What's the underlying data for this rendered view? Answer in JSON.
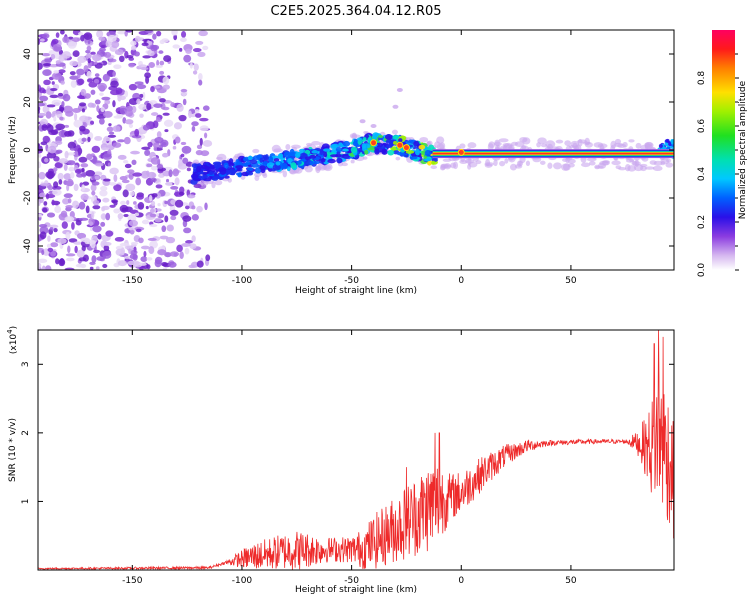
{
  "title": "C2E5.2025.364.04.12.R05",
  "chart_data": [
    {
      "type": "heatmap",
      "name": "spectrogram",
      "xlabel": "Height of straight line (km)",
      "ylabel": "Frequency (Hz)",
      "xlim": [
        -193,
        97
      ],
      "ylim": [
        -50,
        50
      ],
      "xticks": [
        -150,
        -100,
        -50,
        0,
        50
      ],
      "yticks": [
        -40,
        -20,
        0,
        20,
        40
      ],
      "colorbar": {
        "label": "Normalized spectral amplitude",
        "range": [
          0,
          1
        ],
        "ticks": [
          "0.0",
          "0.2",
          "0.4",
          "0.6",
          "0.8"
        ]
      },
      "features": {
        "noise_region_x": [
          -193,
          -122
        ],
        "ridge": [
          [
            -122,
            -10
          ],
          [
            -100,
            -7
          ],
          [
            -75,
            -4
          ],
          [
            -50,
            0
          ],
          [
            -40,
            3
          ],
          [
            -28,
            2
          ],
          [
            -22,
            0
          ],
          [
            -15,
            -2
          ],
          [
            0,
            -1
          ],
          [
            50,
            -2
          ],
          [
            97,
            -2
          ]
        ],
        "strong_line_x": [
          -13,
          97
        ],
        "strong_line_freq": -1.5
      }
    },
    {
      "type": "line",
      "name": "snr",
      "xlabel": "Height of straight line (km)",
      "ylabel": "SNR (10 * v/v)",
      "scale_label": "(x10",
      "scale_exponent": "4",
      "scale_close": ")",
      "xlim": [
        -193,
        97
      ],
      "ylim": [
        0,
        3.5
      ],
      "xticks": [
        -150,
        -100,
        -50,
        0,
        50
      ],
      "yticks": [
        1,
        2,
        3
      ],
      "series": [
        {
          "name": "SNR",
          "color": "#ee2a2a",
          "envelope": [
            [
              -193,
              0.02
            ],
            [
              -115,
              0.03
            ],
            [
              -108,
              0.1
            ],
            [
              -100,
              0.15
            ],
            [
              -80,
              0.25
            ],
            [
              -60,
              0.28
            ],
            [
              -45,
              0.28
            ],
            [
              -38,
              0.4
            ],
            [
              -30,
              0.55
            ],
            [
              -20,
              0.75
            ],
            [
              -10,
              0.95
            ],
            [
              0,
              1.1
            ],
            [
              10,
              1.4
            ],
            [
              20,
              1.65
            ],
            [
              30,
              1.8
            ],
            [
              40,
              1.85
            ],
            [
              60,
              1.87
            ],
            [
              75,
              1.87
            ],
            [
              80,
              1.85
            ],
            [
              87,
              1.7
            ],
            [
              90,
              1.9
            ],
            [
              95,
              1.5
            ],
            [
              97,
              1.2
            ]
          ],
          "spread": [
            [
              -193,
              0.01
            ],
            [
              -108,
              0.02
            ],
            [
              -95,
              0.2
            ],
            [
              -75,
              0.3
            ],
            [
              -60,
              0.18
            ],
            [
              -50,
              0.2
            ],
            [
              -40,
              0.4
            ],
            [
              -25,
              0.55
            ],
            [
              -12,
              0.7
            ],
            [
              -5,
              0.35
            ],
            [
              10,
              0.25
            ],
            [
              25,
              0.12
            ],
            [
              40,
              0.04
            ],
            [
              75,
              0.03
            ],
            [
              80,
              0.15
            ],
            [
              85,
              0.5
            ],
            [
              90,
              1.1
            ],
            [
              97,
              0.9
            ]
          ],
          "spikes": [
            [
              -12,
              2.0
            ],
            [
              -10,
              2.0
            ],
            [
              -25,
              1.5
            ],
            [
              88,
              3.3
            ],
            [
              90,
              3.5
            ],
            [
              92,
              3.4
            ]
          ]
        }
      ]
    }
  ],
  "colors": {
    "snr_line": "#ee2a2a",
    "axis": "#000000"
  }
}
